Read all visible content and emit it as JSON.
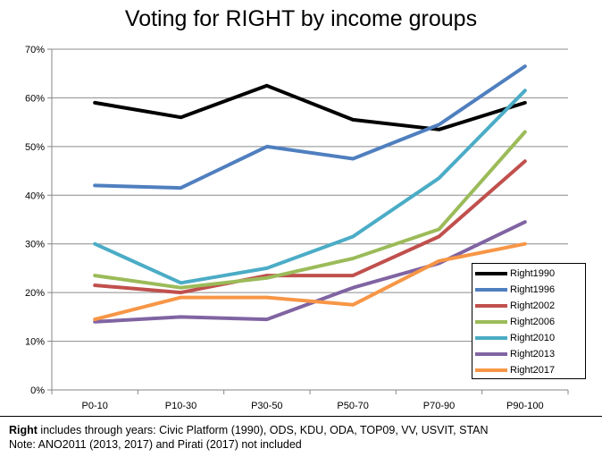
{
  "chart_data": {
    "type": "line",
    "title": "Voting for RIGHT by income groups",
    "categories": [
      "P0-10",
      "P10-30",
      "P30-50",
      "P50-70",
      "P70-90",
      "P90-100"
    ],
    "y_ticks": [
      "0%",
      "10%",
      "20%",
      "30%",
      "40%",
      "50%",
      "60%",
      "70%"
    ],
    "ylim": [
      0,
      70
    ],
    "y_unit": "%",
    "legend_position": "bottom-right",
    "grid": "horizontal",
    "series": [
      {
        "name": "Right1990",
        "color": "#000000",
        "values": [
          59,
          56,
          62.5,
          55.5,
          53.5,
          59
        ]
      },
      {
        "name": "Right1996",
        "color": "#4F7FBF",
        "values": [
          42,
          41.5,
          50,
          47.5,
          54.5,
          66.5
        ]
      },
      {
        "name": "Right2002",
        "color": "#C0504D",
        "values": [
          21.5,
          20,
          23.5,
          23.5,
          31.5,
          47
        ]
      },
      {
        "name": "Right2006",
        "color": "#9BBB59",
        "values": [
          23.5,
          21,
          23,
          27,
          33,
          53
        ]
      },
      {
        "name": "Right2010",
        "color": "#4BACC6",
        "values": [
          30,
          22,
          25,
          31.5,
          43.5,
          61.5
        ]
      },
      {
        "name": "Right2013",
        "color": "#8064A2",
        "values": [
          14,
          15,
          14.5,
          21,
          26,
          34.5
        ]
      },
      {
        "name": "Right2017",
        "color": "#F79646",
        "values": [
          14.5,
          19,
          19,
          17.5,
          26.5,
          30
        ]
      }
    ]
  },
  "note": {
    "bold_label": "Right",
    "line1_rest": " includes through years: Civic Platform (1990), ODS, KDU, ODA, TOP09, VV, USVIT, STAN",
    "line2": "Note: ANO2011 (2013, 2017) and Pirati (2017) not included"
  }
}
